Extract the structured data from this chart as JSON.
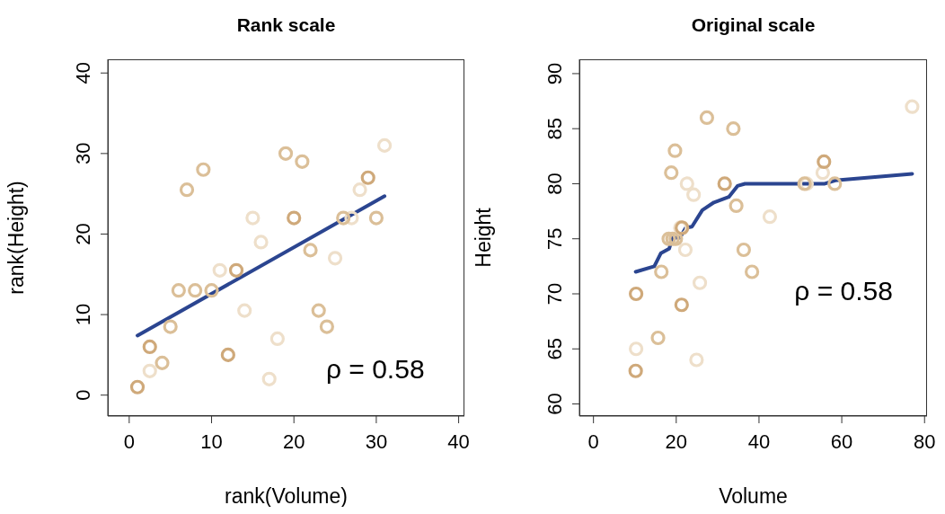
{
  "chart_data": [
    {
      "type": "scatter",
      "title": "Rank scale",
      "xlabel": "rank(Volume)",
      "ylabel": "rank(Height)",
      "xlim": [
        -2.6,
        40.7
      ],
      "ylim": [
        -2.6,
        41.7
      ],
      "xticks": [
        0,
        10,
        20,
        30,
        40
      ],
      "yticks": [
        0,
        10,
        20,
        30,
        40
      ],
      "grid": false,
      "annotations": [
        "ρ = 0.58"
      ],
      "series": [
        {
          "marker": "circle",
          "x": [
            2.5,
            2.5,
            1,
            5,
            7,
            9,
            4,
            6,
            15,
            10,
            16,
            11,
            13,
            12,
            8,
            14,
            21,
            19,
            18,
            17,
            22,
            20,
            23,
            24,
            25,
            28,
            29,
            30,
            27,
            26,
            31
          ],
          "values": [
            6,
            3,
            1,
            8.5,
            25.5,
            28,
            4,
            13,
            22,
            13,
            19,
            15.5,
            15.5,
            5,
            13,
            10.5,
            29,
            30,
            7,
            2,
            18,
            22,
            10.5,
            8.5,
            17,
            25.5,
            27,
            22,
            22,
            22,
            31
          ],
          "colors": [
            "#cfa97a",
            "#eedfca",
            "#cfa97a",
            "#dbbf98",
            "#dbbf98",
            "#dbbf98",
            "#dbbf98",
            "#dbbf98",
            "#eedfca",
            "#dbbf98",
            "#eedfca",
            "#eedfca",
            "#cfa97a",
            "#cfa97a",
            "#dbbf98",
            "#eedfca",
            "#dbbf98",
            "#dbbf98",
            "#eedfca",
            "#eedfca",
            "#dbbf98",
            "#cfa97a",
            "#dbbf98",
            "#dbbf98",
            "#eedfca",
            "#eedfca",
            "#cfa97a",
            "#dbbf98",
            "#eedfca",
            "#dbbf98",
            "#eedfca"
          ]
        },
        {
          "type": "line",
          "color": "#2b4590",
          "x": [
            1,
            31
          ],
          "values": [
            7.4,
            24.7
          ]
        }
      ]
    },
    {
      "type": "scatter",
      "title": "Original scale",
      "xlabel": "Volume",
      "ylabel": "Height",
      "xlim": [
        -3.4,
        80.6
      ],
      "ylim": [
        58.9,
        91.3
      ],
      "xticks": [
        0,
        20,
        40,
        60,
        80
      ],
      "yticks": [
        60,
        65,
        70,
        75,
        80,
        85,
        90
      ],
      "grid": false,
      "annotations": [
        "ρ = 0.58"
      ],
      "series": [
        {
          "marker": "circle",
          "x": [
            10.3,
            10.3,
            10.2,
            16.4,
            18.8,
            19.7,
            15.6,
            18.2,
            22.6,
            19.9,
            24.2,
            21.0,
            21.4,
            21.3,
            19.1,
            22.2,
            33.8,
            27.4,
            25.7,
            24.9,
            34.5,
            31.7,
            36.3,
            38.3,
            42.6,
            55.4,
            55.7,
            58.3,
            51.5,
            51.0,
            77.0
          ],
          "values": [
            70,
            65,
            63,
            72,
            81,
            83,
            66,
            75,
            80,
            75,
            79,
            76,
            76,
            69,
            75,
            74,
            85,
            86,
            71,
            64,
            78,
            80,
            74,
            72,
            77,
            81,
            82,
            80,
            80,
            80,
            87
          ],
          "colors": [
            "#cfa97a",
            "#eedfca",
            "#cfa97a",
            "#dbbf98",
            "#dbbf98",
            "#dbbf98",
            "#dbbf98",
            "#dbbf98",
            "#eedfca",
            "#dbbf98",
            "#eedfca",
            "#eedfca",
            "#cfa97a",
            "#cfa97a",
            "#dbbf98",
            "#eedfca",
            "#dbbf98",
            "#dbbf98",
            "#eedfca",
            "#eedfca",
            "#dbbf98",
            "#cfa97a",
            "#dbbf98",
            "#dbbf98",
            "#eedfca",
            "#eedfca",
            "#cfa97a",
            "#dbbf98",
            "#eedfca",
            "#dbbf98",
            "#eedfca"
          ]
        },
        {
          "type": "line",
          "color": "#2b4590",
          "x": [
            10.2,
            14.7,
            16.3,
            18.3,
            19.1,
            20.9,
            22.3,
            23.8,
            26.3,
            29.1,
            32.7,
            34.8,
            36.6,
            55.9,
            58.4,
            77.0
          ],
          "values": [
            72.0,
            72.5,
            73.7,
            74.1,
            75.1,
            75.1,
            76.0,
            76.1,
            77.6,
            78.3,
            78.8,
            79.8,
            80.0,
            80.0,
            80.3,
            80.9
          ]
        }
      ]
    }
  ]
}
